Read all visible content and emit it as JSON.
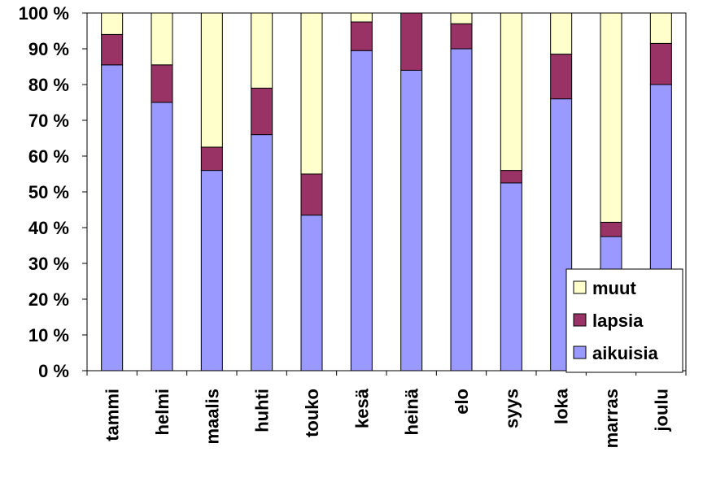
{
  "chart_data": {
    "type": "bar",
    "stacked": true,
    "percent": true,
    "categories": [
      "tammi",
      "helmi",
      "maalis",
      "huhti",
      "touko",
      "kesä",
      "heinä",
      "elo",
      "syys",
      "loka",
      "marras",
      "joulu"
    ],
    "series": [
      {
        "name": "aikuisia",
        "color": "#9999ff",
        "values": [
          85.5,
          75,
          56,
          66,
          43.5,
          89.5,
          84,
          90,
          52.5,
          76,
          37.5,
          80
        ]
      },
      {
        "name": "lapsia",
        "color": "#993366",
        "values": [
          8.5,
          10.5,
          6.5,
          13,
          11.5,
          8,
          16,
          7,
          3.5,
          12.5,
          4,
          11.5
        ]
      },
      {
        "name": "muut",
        "color": "#ffffcc",
        "values": [
          6,
          14.5,
          37.5,
          21,
          45,
          2.5,
          0,
          3,
          44,
          11.5,
          58.5,
          8.5
        ]
      }
    ],
    "ylim": [
      0,
      100
    ],
    "yticks": [
      "0 %",
      "10 %",
      "20 %",
      "30 %",
      "40 %",
      "50 %",
      "60 %",
      "70 %",
      "80 %",
      "90 %",
      "100 %"
    ],
    "legend": {
      "placement": "bottom-right",
      "entries": [
        "muut",
        "lapsia",
        "aikuisia"
      ]
    },
    "grid": false
  }
}
